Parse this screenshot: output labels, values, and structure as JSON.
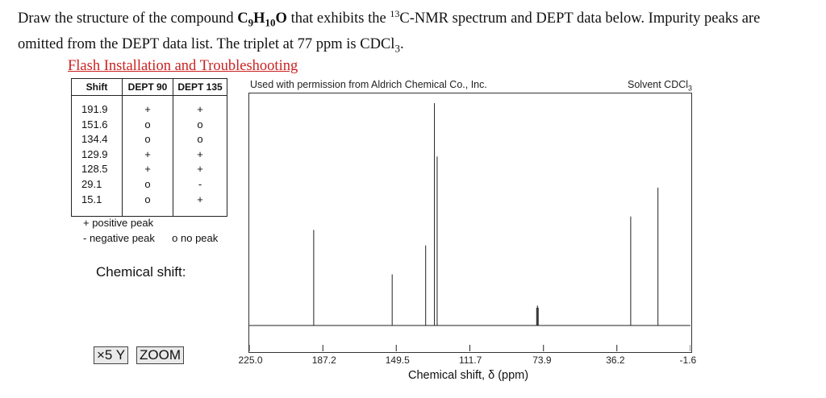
{
  "question": {
    "line1_pre": "Draw the structure of the compound ",
    "formula": {
      "c": "C",
      "c_n": "9",
      "h": "H",
      "h_n": "10",
      "o": "O"
    },
    "line1_mid": " that exhibits the ",
    "isotope_sup": "13",
    "line1_post": "C-NMR spectrum and DEPT data below. Impurity peaks are",
    "line2": "omitted from the DEPT data list. The triplet at 77 ppm is CDCl",
    "line2_sub": "3",
    "line2_end": "."
  },
  "link": {
    "flash": "Flash Installation and Troubleshooting"
  },
  "table": {
    "headers": {
      "shift": "Shift",
      "dept90": "DEPT 90",
      "dept135": "DEPT 135"
    },
    "rows": [
      {
        "shift": "191.9",
        "dept90": "+",
        "dept135": "+"
      },
      {
        "shift": "151.6",
        "dept90": "o",
        "dept135": "o"
      },
      {
        "shift": "134.4",
        "dept90": "o",
        "dept135": "o"
      },
      {
        "shift": "129.9",
        "dept90": "+",
        "dept135": "+"
      },
      {
        "shift": "128.5",
        "dept90": "+",
        "dept135": "+"
      },
      {
        "shift": "29.1",
        "dept90": "o",
        "dept135": "-"
      },
      {
        "shift": "15.1",
        "dept90": "o",
        "dept135": "+"
      }
    ]
  },
  "legend": {
    "positive": "+ positive peak",
    "negative": "- negative peak",
    "nopeak": "o  no peak"
  },
  "chemical_shift_label": "Chemical shift:",
  "buttons": {
    "x5y": "×5 Y",
    "zoom": "ZOOM"
  },
  "spectrum": {
    "permission": "Used with permission from Aldrich Chemical Co., Inc.",
    "solvent_prefix": "Solvent CDCl",
    "solvent_sub": "3",
    "x_ticks": [
      "225.0",
      "187.2",
      "149.5",
      "111.7",
      "73.9",
      "36.2",
      "-1.6"
    ],
    "x_title": "Chemical shift, δ (ppm)",
    "line_color": "#222222"
  },
  "chart_data": {
    "type": "line",
    "title": "",
    "xlabel": "Chemical shift, δ (ppm)",
    "ylabel": "",
    "xlim": [
      225.0,
      -1.6
    ],
    "x_ticks": [
      225.0,
      187.2,
      149.5,
      111.7,
      73.9,
      36.2,
      -1.6
    ],
    "series": [
      {
        "peaks": [
          {
            "shift": 191.9,
            "intensity": 0.43
          },
          {
            "shift": 151.6,
            "intensity": 0.23
          },
          {
            "shift": 134.4,
            "intensity": 0.36
          },
          {
            "shift": 129.9,
            "intensity": 1.0
          },
          {
            "shift": 128.5,
            "intensity": 0.76
          },
          {
            "shift": 77.4,
            "intensity": 0.08
          },
          {
            "shift": 77.0,
            "intensity": 0.09
          },
          {
            "shift": 76.6,
            "intensity": 0.08
          },
          {
            "shift": 29.1,
            "intensity": 0.49
          },
          {
            "shift": 15.1,
            "intensity": 0.62
          }
        ]
      }
    ]
  }
}
